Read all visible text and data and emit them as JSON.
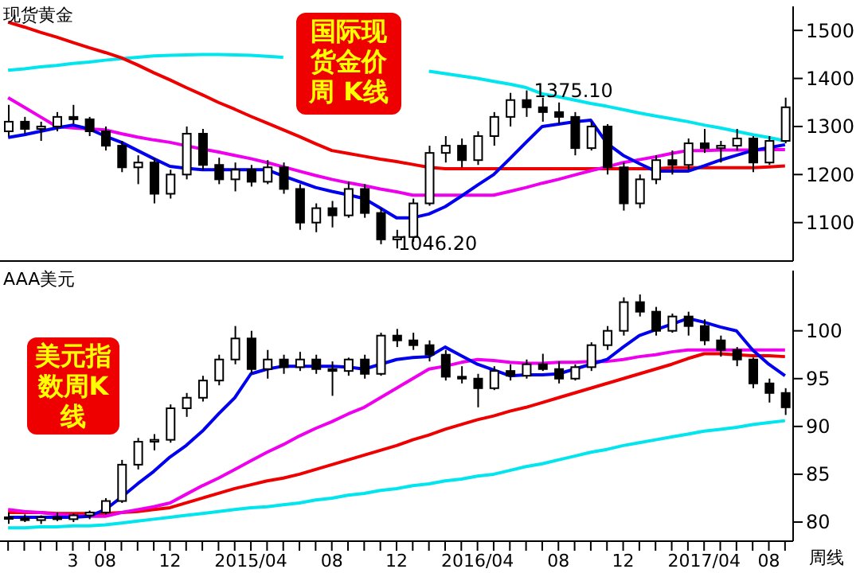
{
  "chart_data": [
    {
      "type": "candlestick",
      "title": "现货黄金",
      "tick_labels": "y",
      "categories": [
        null,
        null,
        null,
        null,
        "3",
        null,
        "08",
        null,
        null,
        null,
        "12",
        null,
        null,
        null,
        null,
        "2015/04",
        null,
        null,
        null,
        null,
        "08",
        null,
        null,
        null,
        "12",
        null,
        null,
        null,
        null,
        "2016/04",
        null,
        null,
        null,
        null,
        "08",
        null,
        null,
        null,
        "12",
        null,
        null,
        null,
        null,
        "2017/04",
        null,
        null,
        null,
        "08",
        null
      ],
      "ohlc": [
        [
          1290,
          1345,
          1280,
          1310
        ],
        [
          1310,
          1320,
          1285,
          1295
        ],
        [
          1295,
          1310,
          1270,
          1300
        ],
        [
          1300,
          1330,
          1290,
          1320
        ],
        [
          1320,
          1345,
          1305,
          1315
        ],
        [
          1315,
          1320,
          1280,
          1290
        ],
        [
          1290,
          1300,
          1250,
          1260
        ],
        [
          1260,
          1270,
          1205,
          1215
        ],
        [
          1215,
          1240,
          1180,
          1225
        ],
        [
          1225,
          1235,
          1140,
          1160
        ],
        [
          1160,
          1210,
          1150,
          1200
        ],
        [
          1200,
          1300,
          1190,
          1285
        ],
        [
          1285,
          1295,
          1210,
          1220
        ],
        [
          1220,
          1235,
          1180,
          1190
        ],
        [
          1190,
          1225,
          1165,
          1210
        ],
        [
          1210,
          1220,
          1175,
          1185
        ],
        [
          1185,
          1230,
          1180,
          1215
        ],
        [
          1215,
          1225,
          1160,
          1170
        ],
        [
          1170,
          1180,
          1085,
          1100
        ],
        [
          1100,
          1140,
          1080,
          1130
        ],
        [
          1130,
          1145,
          1090,
          1115
        ],
        [
          1115,
          1185,
          1110,
          1170
        ],
        [
          1170,
          1180,
          1110,
          1120
        ],
        [
          1120,
          1130,
          1055,
          1065
        ],
        [
          1065,
          1085,
          1046.2,
          1070
        ],
        [
          1070,
          1150,
          1060,
          1140
        ],
        [
          1140,
          1260,
          1135,
          1245
        ],
        [
          1245,
          1280,
          1225,
          1260
        ],
        [
          1260,
          1275,
          1215,
          1230
        ],
        [
          1230,
          1290,
          1220,
          1280
        ],
        [
          1280,
          1330,
          1260,
          1320
        ],
        [
          1320,
          1370,
          1300,
          1355
        ],
        [
          1355,
          1375.1,
          1320,
          1340
        ],
        [
          1340,
          1360,
          1310,
          1330
        ],
        [
          1330,
          1350,
          1305,
          1320
        ],
        [
          1320,
          1330,
          1240,
          1255
        ],
        [
          1255,
          1310,
          1250,
          1300
        ],
        [
          1300,
          1305,
          1200,
          1215
        ],
        [
          1215,
          1225,
          1125,
          1140
        ],
        [
          1140,
          1200,
          1130,
          1190
        ],
        [
          1190,
          1240,
          1180,
          1230
        ],
        [
          1230,
          1250,
          1200,
          1220
        ],
        [
          1220,
          1275,
          1210,
          1265
        ],
        [
          1265,
          1295,
          1245,
          1255
        ],
        [
          1255,
          1270,
          1225,
          1260
        ],
        [
          1260,
          1295,
          1250,
          1275
        ],
        [
          1275,
          1280,
          1205,
          1225
        ],
        [
          1225,
          1280,
          1220,
          1270
        ],
        [
          1270,
          1360,
          1265,
          1340
        ]
      ],
      "series": [
        {
          "type": "line",
          "color": "#00e5ee",
          "values": [
            1417,
            1420,
            1424,
            1427,
            1431,
            1434,
            1438,
            1441,
            1444,
            1447,
            1448,
            1449,
            1450,
            1450,
            1449,
            1448,
            1446,
            1444,
            null,
            null,
            null,
            null,
            null,
            null,
            null,
            null,
            1415,
            1410,
            1405,
            1400,
            1394,
            1388,
            1381,
            1368,
            1362,
            1355,
            1348,
            1342,
            1335,
            1328,
            1322,
            1316,
            1310,
            1303,
            1297,
            1290,
            1283,
            1277,
            1270
          ]
        },
        {
          "type": "line",
          "color": "#ee0000",
          "values": [
            1517,
            1507,
            1496,
            1486,
            1475,
            1464,
            1454,
            1443,
            1428,
            1412,
            1397,
            1381,
            1366,
            1350,
            1336,
            1321,
            1307,
            1293,
            1279,
            1264,
            1250,
            1244,
            1238,
            1232,
            1227,
            1221,
            1215,
            1212,
            1212,
            1212,
            1212,
            1212,
            1212,
            1212,
            1212,
            1212,
            1212,
            1212,
            1212,
            1212,
            1212,
            1214,
            1214,
            1214,
            1214,
            1214,
            1214,
            1216,
            1218
          ]
        },
        {
          "type": "line",
          "color": "#ee00ee",
          "values": [
            1360,
            1340,
            1320,
            1300,
            1297,
            1295,
            1293,
            1285,
            1278,
            1272,
            1267,
            1260,
            1253,
            1247,
            1240,
            1233,
            1225,
            1216,
            1207,
            1198,
            1190,
            1183,
            1177,
            1170,
            1164,
            1157,
            1157,
            1157,
            1157,
            1157,
            1157,
            1165,
            1173,
            1182,
            1190,
            1199,
            1208,
            1216,
            1225,
            1231,
            1237,
            1244,
            1250,
            1250,
            1251,
            1251,
            1251,
            1252,
            1252
          ]
        },
        {
          "type": "line",
          "color": "#0000ee",
          "values": [
            1277,
            1283,
            1290,
            1297,
            1303,
            1295,
            1280,
            1267,
            1250,
            1233,
            1217,
            1213,
            1210,
            1210,
            1210,
            1210,
            1210,
            1197,
            1185,
            1173,
            1165,
            1158,
            1150,
            1130,
            1110,
            1110,
            1118,
            1133,
            1155,
            1178,
            1200,
            1233,
            1267,
            1300,
            1305,
            1310,
            1313,
            1265,
            1240,
            1223,
            1207,
            1207,
            1207,
            1218,
            1230,
            1240,
            1250,
            1256,
            1262
          ]
        }
      ],
      "ylim": [
        1020,
        1550
      ],
      "yticks": [
        1100,
        1200,
        1300,
        1400,
        1500
      ],
      "grid": false,
      "legend": false,
      "marker": "none",
      "annotations": [
        "国际现货金价周 K线",
        "1046.20",
        {
          "text": "1375.10",
          "y": 1375.1
        }
      ]
    },
    {
      "type": "candlestick",
      "title": "AAA美元",
      "categories": [
        null,
        null,
        null,
        null,
        "3",
        null,
        "08",
        null,
        null,
        null,
        "12",
        null,
        null,
        null,
        null,
        "2015/04",
        null,
        null,
        null,
        null,
        "08",
        null,
        null,
        null,
        "12",
        null,
        null,
        null,
        null,
        "2016/04",
        null,
        null,
        null,
        null,
        "08",
        null,
        null,
        null,
        "12",
        null,
        null,
        null,
        null,
        "2017/04",
        null,
        null,
        null,
        "08",
        null
      ],
      "ohlc": [
        [
          80.5,
          81,
          79.8,
          80.4
        ],
        [
          80.4,
          80.8,
          80,
          80.2
        ],
        [
          80.2,
          80.7,
          79.8,
          80.5
        ],
        [
          80.5,
          81,
          80.1,
          80.3
        ],
        [
          80.3,
          80.9,
          80,
          80.7
        ],
        [
          80.7,
          81.2,
          80.3,
          81
        ],
        [
          81,
          82.5,
          80.8,
          82.2
        ],
        [
          82.2,
          86.5,
          82,
          86
        ],
        [
          86,
          88.8,
          85.5,
          88.4
        ],
        [
          88.4,
          89.2,
          87.5,
          88.6
        ],
        [
          88.6,
          92.3,
          88.3,
          91.9
        ],
        [
          91.9,
          93.5,
          91,
          93
        ],
        [
          93,
          95.3,
          92.6,
          94.8
        ],
        [
          94.8,
          97.5,
          94.3,
          97
        ],
        [
          97,
          100.5,
          96.5,
          99.2
        ],
        [
          99.2,
          100,
          95.5,
          96
        ],
        [
          96,
          98,
          95,
          97
        ],
        [
          97,
          97.5,
          95.5,
          96.2
        ],
        [
          96.2,
          97.8,
          95.8,
          97
        ],
        [
          97,
          97.5,
          95.5,
          96
        ],
        [
          96,
          96.8,
          93.2,
          95.8
        ],
        [
          95.8,
          97.2,
          95.3,
          97
        ],
        [
          97,
          97.5,
          95,
          95.5
        ],
        [
          95.5,
          99.8,
          95.3,
          99.5
        ],
        [
          99.5,
          100.2,
          98.3,
          99
        ],
        [
          99,
          99.8,
          98,
          98.5
        ],
        [
          98.5,
          99,
          96.8,
          97.5
        ],
        [
          97.5,
          98,
          94.8,
          95.2
        ],
        [
          95.2,
          96.3,
          94.5,
          95
        ],
        [
          95,
          95.5,
          92,
          94
        ],
        [
          94,
          96.3,
          93.8,
          95.8
        ],
        [
          95.8,
          96.5,
          94.8,
          95.3
        ],
        [
          95.3,
          97,
          95,
          96.5
        ],
        [
          96.5,
          97.6,
          95.8,
          96
        ],
        [
          96,
          96.8,
          94.5,
          95
        ],
        [
          95,
          96.5,
          94.8,
          96.2
        ],
        [
          96.2,
          98.8,
          95.8,
          98.5
        ],
        [
          98.5,
          100.5,
          98,
          100
        ],
        [
          100,
          103.5,
          99.5,
          103
        ],
        [
          103,
          103.8,
          101.5,
          102
        ],
        [
          102,
          102.5,
          99.5,
          100
        ],
        [
          100,
          101.8,
          99.8,
          101.5
        ],
        [
          101.5,
          102,
          99.5,
          100.5
        ],
        [
          100.5,
          101.2,
          98.5,
          99
        ],
        [
          99,
          99.5,
          97.3,
          98
        ],
        [
          98,
          98.3,
          96.3,
          97
        ],
        [
          97,
          97.2,
          94,
          94.5
        ],
        [
          94.5,
          95,
          92.5,
          93.5
        ],
        [
          93.5,
          94,
          91.2,
          92
        ]
      ],
      "series": [
        {
          "type": "line",
          "color": "#00e5ee",
          "values": [
            79.4,
            79.4,
            79.5,
            79.5,
            79.6,
            79.6,
            79.7,
            79.9,
            80.1,
            80.3,
            80.5,
            80.7,
            80.9,
            81.1,
            81.3,
            81.5,
            81.6,
            81.8,
            82,
            82.3,
            82.5,
            82.8,
            83,
            83.3,
            83.5,
            83.8,
            84,
            84.3,
            84.5,
            84.8,
            85,
            85.4,
            85.8,
            86.1,
            86.5,
            86.9,
            87.3,
            87.6,
            88,
            88.3,
            88.6,
            88.9,
            89.2,
            89.5,
            89.7,
            89.9,
            90.2,
            90.4,
            90.6
          ]
        },
        {
          "type": "line",
          "color": "#ee0000",
          "values": [
            81,
            81,
            81,
            80.9,
            80.9,
            80.9,
            80.9,
            81,
            81.1,
            81.3,
            81.5,
            82,
            82.5,
            83,
            83.5,
            83.9,
            84.3,
            84.6,
            85,
            85.5,
            86,
            86.5,
            87,
            87.5,
            88,
            88.6,
            89.1,
            89.7,
            90.2,
            90.7,
            91.1,
            91.6,
            92,
            92.5,
            93,
            93.5,
            94,
            94.5,
            95,
            95.5,
            96,
            96.5,
            97.1,
            97.6,
            97.6,
            97.5,
            97.4,
            97.4,
            97.3
          ]
        },
        {
          "type": "line",
          "color": "#ee00ee",
          "values": [
            81.3,
            81.1,
            81,
            80.8,
            80.7,
            80.6,
            80.6,
            81,
            81.3,
            81.6,
            82,
            82.9,
            83.8,
            84.6,
            85.5,
            86.4,
            87.3,
            88.1,
            89,
            89.8,
            90.5,
            91.3,
            92,
            93,
            94,
            95,
            96,
            96.3,
            96.7,
            97,
            96.9,
            96.7,
            96.6,
            96.6,
            96.7,
            96.7,
            96.8,
            96.8,
            97,
            97.3,
            97.5,
            97.8,
            98,
            98,
            98,
            98,
            98,
            98,
            98
          ]
        },
        {
          "type": "line",
          "color": "#0000ee",
          "values": [
            80.5,
            80.5,
            80.5,
            80.5,
            80.5,
            80.6,
            81.3,
            82.6,
            84,
            85.3,
            86.8,
            88,
            89.5,
            91.3,
            93,
            95.5,
            96,
            96.3,
            96.3,
            96.3,
            96.3,
            96.2,
            96,
            96.5,
            97,
            97.2,
            97.3,
            98.3,
            97.4,
            96.5,
            95.9,
            95.3,
            95.4,
            95.4,
            95.5,
            96,
            96.5,
            97,
            98.3,
            99.5,
            100.1,
            100.7,
            101.3,
            100.9,
            100.4,
            100,
            98,
            96.5,
            95.3
          ]
        }
      ],
      "ylim": [
        78,
        106.3
      ],
      "yticks": [
        80,
        85,
        90,
        95,
        100
      ],
      "grid": false,
      "legend": false,
      "marker": "none",
      "annotations": [
        "美元指数周K线",
        "周线"
      ]
    }
  ]
}
